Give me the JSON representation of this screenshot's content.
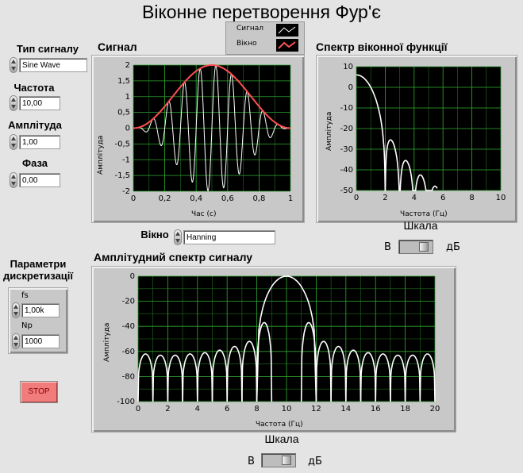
{
  "window": {
    "title": "Віконне перетворення Фур'є"
  },
  "controls": {
    "signal_type": {
      "label": "Тип сигналу",
      "value": "Sine Wave"
    },
    "frequency": {
      "label": "Частота",
      "value": "10,00"
    },
    "amplitude": {
      "label": "Амплітуда",
      "value": "1,00"
    },
    "phase": {
      "label": "Фаза",
      "value": "0,00"
    },
    "window": {
      "label": "Вікно",
      "value": "Hanning"
    },
    "sampling": {
      "label": "Параметри дискретизації",
      "fs": {
        "label": "fs",
        "value": "1,00k"
      },
      "np": {
        "label": "Np",
        "value": "1000"
      }
    },
    "stop": {
      "label": "STOP"
    }
  },
  "legend": {
    "items": [
      {
        "label": "Сигнал",
        "color": "#ffffff"
      },
      {
        "label": "Вікно",
        "color": "#ff5050"
      }
    ]
  },
  "signal_graph": {
    "title": "Сигнал",
    "xlabel": "Час (с)",
    "ylabel": "Амплітуда",
    "xticks": [
      "0",
      "0,2",
      "0,4",
      "0,6",
      "0,8",
      "1"
    ],
    "yticks": [
      "2",
      "1,5",
      "1",
      "0,5",
      "0",
      "-0,5",
      "-1",
      "-1,5",
      "-2"
    ]
  },
  "window_spectrum_graph": {
    "title": "Спектр віконної функції",
    "xlabel": "Частота (Гц)",
    "ylabel": "Амплітуда",
    "xticks": [
      "0",
      "2",
      "4",
      "6",
      "8",
      "10"
    ],
    "yticks": [
      "10",
      "0",
      "-10",
      "-20",
      "-30",
      "-40",
      "-50"
    ],
    "scale": {
      "label": "Шкала",
      "left": "В",
      "right": "дБ",
      "state": "дБ"
    }
  },
  "amp_spectrum_graph": {
    "title": "Амплітудний спектр сигналу",
    "xlabel": "Частота (Гц)",
    "ylabel": "Амплітуда",
    "xticks": [
      "0",
      "2",
      "4",
      "6",
      "8",
      "10",
      "12",
      "14",
      "16",
      "18",
      "20"
    ],
    "yticks": [
      "0",
      "-20",
      "-40",
      "-60",
      "-80",
      "-100"
    ],
    "scale": {
      "label": "Шкала",
      "left": "В",
      "right": "дБ",
      "state": "дБ"
    }
  },
  "chart_data": [
    {
      "type": "line",
      "title": "Сигнал",
      "xlabel": "Час (с)",
      "ylabel": "Амплітуда",
      "xlim": [
        0,
        1
      ],
      "ylim": [
        -2,
        2
      ],
      "grid": true,
      "series": [
        {
          "name": "Сигнал",
          "function": "2*hanning(t)*sin(2*pi*10*t)",
          "x": [
            0,
            0.1,
            0.2,
            0.3,
            0.4,
            0.5,
            0.6,
            0.7,
            0.8,
            0.9,
            1.0
          ],
          "y": [
            0,
            0,
            0,
            0,
            0,
            0,
            0,
            0,
            0,
            0,
            0
          ],
          "color": "#ffffff"
        },
        {
          "name": "Вікно",
          "x": [
            0,
            0.1,
            0.2,
            0.3,
            0.4,
            0.5,
            0.6,
            0.7,
            0.8,
            0.9,
            1.0
          ],
          "y": [
            0,
            0.19,
            0.69,
            1.31,
            1.81,
            2.0,
            1.81,
            1.31,
            0.69,
            0.19,
            0
          ],
          "color": "#ff5050"
        }
      ]
    },
    {
      "type": "line",
      "title": "Спектр віконної функції",
      "xlabel": "Частота (Гц)",
      "ylabel": "Амплітуда",
      "xlim": [
        0,
        10
      ],
      "ylim": [
        -50,
        10
      ],
      "grid": true,
      "series": [
        {
          "name": "",
          "x": [
            0,
            0.5,
            1,
            1.5,
            2,
            2.5,
            3,
            3.5,
            4,
            4.5,
            5,
            5.5
          ],
          "y": [
            6,
            3.5,
            -3,
            -20,
            -50,
            -25,
            -50,
            -33,
            -50,
            -40,
            -50,
            -44
          ],
          "color": "#ffffff"
        }
      ]
    },
    {
      "type": "line",
      "title": "Амплітудний спектр сигналу",
      "xlabel": "Частота (Гц)",
      "ylabel": "Амплітуда",
      "xlim": [
        0,
        20
      ],
      "ylim": [
        -100,
        0
      ],
      "grid": true,
      "series": [
        {
          "name": "",
          "x": [
            0.5,
            1.5,
            2.5,
            3.5,
            4.5,
            5.5,
            6.5,
            7.5,
            8.5,
            10,
            11.5,
            12.5,
            13.5,
            14.5,
            15.5,
            16.5,
            17.5,
            18.5,
            19.5
          ],
          "y": [
            -62,
            -63,
            -63,
            -62,
            -61,
            -59,
            -56,
            -52,
            -37,
            0,
            -37,
            -52,
            -56,
            -59,
            -61,
            -62,
            -63,
            -63,
            -62
          ],
          "color": "#ffffff"
        }
      ]
    }
  ]
}
